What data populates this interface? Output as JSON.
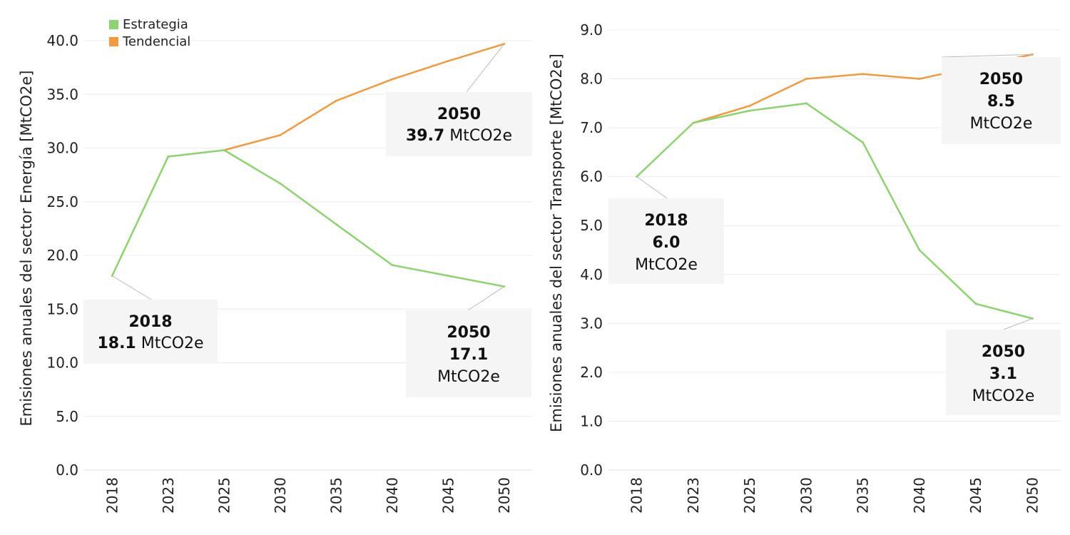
{
  "legend": [
    {
      "label": "Estrategia",
      "color": "#8dd36f"
    },
    {
      "label": "Tendencial",
      "color": "#f39a3c"
    }
  ],
  "chart_data": [
    {
      "type": "line",
      "ylabel": "Emisiones anuales del sector Energía [MtCO2e]",
      "categories": [
        "2018",
        "2023",
        "2025",
        "2030",
        "2035",
        "2040",
        "2045",
        "2050"
      ],
      "ylim": [
        0,
        40
      ],
      "yticks": [
        "0.0",
        "5.0",
        "10.0",
        "15.0",
        "20.0",
        "25.0",
        "30.0",
        "35.0",
        "40.0"
      ],
      "series": [
        {
          "name": "Estrategia",
          "color": "#8dd36f",
          "values": [
            18.1,
            29.2,
            29.8,
            26.7,
            22.9,
            19.1,
            18.1,
            17.1
          ]
        },
        {
          "name": "Tendencial",
          "color": "#f39a3c",
          "values": [
            null,
            null,
            29.8,
            31.2,
            34.4,
            36.4,
            38.1,
            39.7
          ]
        }
      ],
      "callouts": [
        {
          "title": "2018",
          "value": "18.1",
          "unit": "MtCO2e",
          "layout": "inline"
        },
        {
          "title": "2050",
          "value": "39.7",
          "unit": "MtCO2e",
          "layout": "inline"
        },
        {
          "title": "2050",
          "value": "17.1",
          "unit": "MtCO2e",
          "layout": "stacked"
        }
      ]
    },
    {
      "type": "line",
      "ylabel": "Emisiones anuales del sector Transporte [MtCO2e]",
      "categories": [
        "2018",
        "2023",
        "2025",
        "2030",
        "2035",
        "2040",
        "2045",
        "2050"
      ],
      "ylim": [
        0,
        9
      ],
      "yticks": [
        "0.0",
        "1.0",
        "2.0",
        "3.0",
        "4.0",
        "5.0",
        "6.0",
        "7.0",
        "8.0",
        "9.0"
      ],
      "series": [
        {
          "name": "Estrategia",
          "color": "#8dd36f",
          "values": [
            6.0,
            7.1,
            7.35,
            7.5,
            6.7,
            4.5,
            3.4,
            3.1
          ]
        },
        {
          "name": "Tendencial",
          "color": "#f39a3c",
          "values": [
            null,
            7.1,
            7.45,
            8.0,
            8.1,
            8.0,
            8.25,
            8.5
          ]
        }
      ],
      "callouts": [
        {
          "title": "2018",
          "value": "6.0",
          "unit": "MtCO2e",
          "layout": "stacked"
        },
        {
          "title": "2050",
          "value": "8.5",
          "unit": "MtCO2e",
          "layout": "stacked"
        },
        {
          "title": "2050",
          "value": "3.1",
          "unit": "MtCO2e",
          "layout": "stacked"
        }
      ]
    }
  ]
}
